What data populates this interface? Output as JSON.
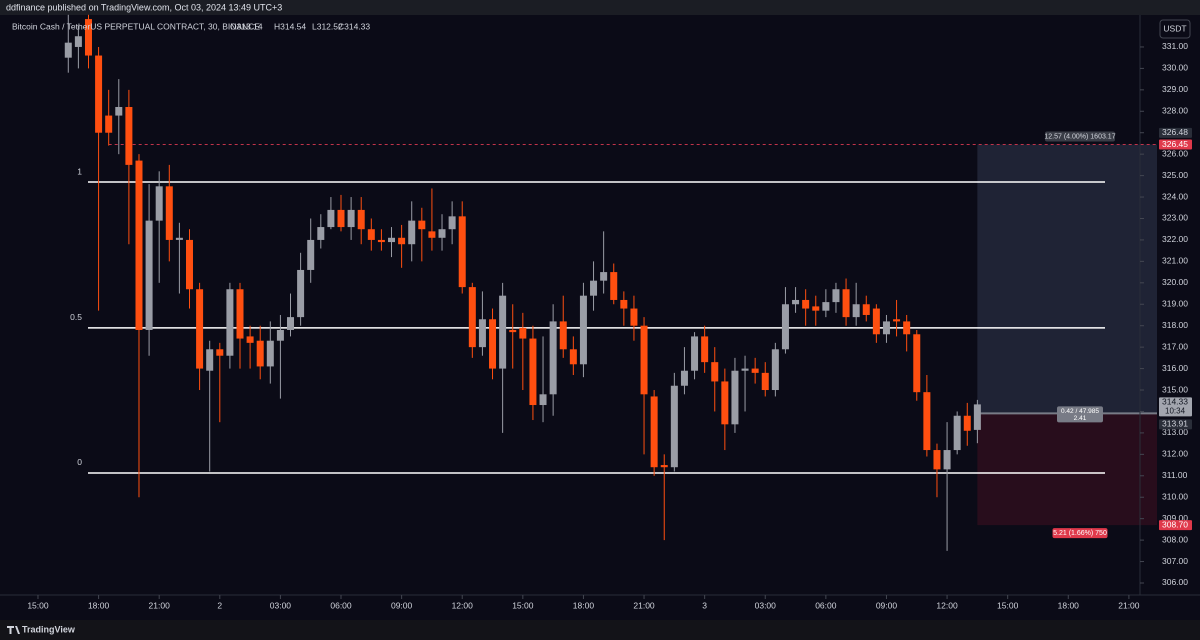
{
  "header": {
    "published": "ddfinance published on TradingView.com, Oct 03, 2024 13:49 UTC+3",
    "symbol": "Bitcoin Cash / TetherUS PERPETUAL CONTRACT, 30, BINANCE",
    "ohlc_labels": [
      "O313.14",
      "H314.54",
      "L312.52",
      "C314.33"
    ],
    "currency": "USDT",
    "logo": "TradingView"
  },
  "chart_data": {
    "type": "candlestick",
    "up_color": "#9a9da6",
    "down_color": "#ff4f10",
    "x": [
      16.5,
      17,
      17.5,
      18,
      18.5,
      19,
      19.5,
      20,
      20.5,
      21,
      21.5,
      22,
      22.5,
      23,
      23.5,
      24,
      24.5,
      25,
      25.5,
      26,
      26.5,
      27,
      27.5,
      28,
      28.5,
      29,
      29.5,
      30,
      30.5,
      31,
      31.5,
      32,
      32.5,
      33,
      33.5,
      34,
      34.5,
      35,
      35.5,
      36,
      36.5,
      37,
      37.5,
      38,
      38.5,
      39,
      39.5,
      40,
      40.5,
      41,
      41.5,
      42,
      42.5,
      43,
      43.5,
      44,
      44.5,
      45,
      45.5,
      46,
      46.5,
      47,
      47.5,
      48,
      48.5,
      49,
      49.5,
      50,
      50.5,
      51,
      51.5,
      52,
      52.5,
      53,
      53.5,
      54,
      54.5,
      55,
      55.5,
      56,
      56.5,
      57,
      57.5,
      58,
      58.5,
      59,
      59.5,
      60,
      60.5,
      61,
      61.5
    ],
    "open": [
      330.5,
      331,
      332.3,
      330.6,
      327.8,
      327.8,
      328.2,
      325.7,
      317.8,
      322.9,
      324.5,
      322,
      322,
      319.7,
      315.9,
      316.9,
      316.6,
      319.7,
      317.5,
      317.3,
      316.1,
      317.3,
      317.8,
      318.4,
      320.6,
      322,
      322.6,
      323.4,
      322.6,
      323.4,
      322.5,
      322,
      321.9,
      322.1,
      321.8,
      322.9,
      322.4,
      322.1,
      322.5,
      323.1,
      319.8,
      317,
      318.3,
      316,
      317.8,
      317.9,
      317.4,
      314.3,
      314.8,
      318.2,
      316.9,
      316.2,
      319.4,
      320.1,
      320.5,
      319.2,
      318.8,
      318,
      314.7,
      311.5,
      311.4,
      315.2,
      315.9,
      317.5,
      316.3,
      315.4,
      313.4,
      315.9,
      316,
      315.8,
      315,
      316.9,
      319,
      319.2,
      318.9,
      318.7,
      319.1,
      319.7,
      318.4,
      319,
      318.8,
      317.6,
      318.3,
      318.2,
      317.6,
      314.9,
      312.2,
      311.3,
      312.2,
      313.8,
      313.14
    ],
    "high": [
      332.5,
      332,
      332.5,
      331,
      329,
      329.5,
      329,
      326,
      324.6,
      325.2,
      325.5,
      322.8,
      322.5,
      320,
      317.3,
      317.2,
      320,
      320,
      318,
      318,
      318.2,
      318.5,
      319.5,
      321.4,
      323,
      323.2,
      324,
      324.1,
      324,
      324,
      323,
      322.5,
      322.6,
      322.7,
      323.8,
      323.5,
      324.4,
      323.2,
      323.8,
      323.8,
      320,
      319.6,
      318.8,
      320,
      319,
      318.6,
      318,
      317.5,
      319,
      319.4,
      317.5,
      320,
      321,
      322.4,
      320.9,
      319.6,
      319.4,
      318.4,
      315,
      312,
      315.8,
      317,
      317.7,
      318,
      317,
      316,
      316.5,
      316.6,
      316.5,
      316.3,
      317.2,
      319.8,
      319.8,
      319.7,
      319.4,
      319.7,
      320,
      320.2,
      320,
      319.4,
      319,
      318.5,
      319.2,
      318.5,
      317.8,
      315.7,
      312.5,
      313.5,
      314,
      314.4,
      314.54
    ],
    "low": [
      329.8,
      330,
      330,
      318.7,
      326.4,
      326,
      321.8,
      310,
      316.6,
      320,
      321,
      319.5,
      318.8,
      315,
      311.2,
      313.5,
      316,
      316,
      316,
      315.5,
      315.3,
      314.6,
      317.5,
      318,
      320,
      321.6,
      322.5,
      322.4,
      322,
      321.8,
      321.5,
      321.5,
      321.2,
      320.7,
      321,
      321,
      321.5,
      321.5,
      321.8,
      319.5,
      316.5,
      316.6,
      315.5,
      313,
      316,
      315,
      313.6,
      313.5,
      313.8,
      316.5,
      315.7,
      315.6,
      318.7,
      319.5,
      319,
      318,
      317.3,
      312,
      311,
      308,
      311.2,
      314.8,
      315.5,
      315.8,
      314,
      312.2,
      313,
      314,
      315.3,
      314.7,
      314.7,
      316.7,
      318.6,
      318,
      318,
      318.4,
      318.6,
      318,
      318,
      318.2,
      317.2,
      317.2,
      317.5,
      316.8,
      314.5,
      311.9,
      310,
      307.5,
      312,
      312.4,
      312.52
    ],
    "close": [
      331.2,
      331.5,
      330.6,
      327,
      327,
      328.2,
      325.5,
      317.8,
      322.9,
      324.5,
      322,
      322.1,
      319.7,
      316,
      316.9,
      316.6,
      319.7,
      317.4,
      317.2,
      316.1,
      317.3,
      317.8,
      318.4,
      320.6,
      322,
      322.6,
      323.4,
      322.6,
      323.4,
      322.5,
      322,
      321.9,
      322.1,
      321.8,
      322.9,
      322.5,
      322.1,
      322.5,
      323.1,
      319.8,
      317,
      318.3,
      316,
      319.4,
      317.7,
      317.4,
      314.3,
      314.8,
      318.2,
      316.9,
      316.2,
      319.4,
      320.1,
      320.5,
      319.2,
      318.8,
      318,
      314.8,
      311.4,
      311.4,
      315.2,
      315.9,
      317.5,
      316.3,
      315.4,
      313.4,
      315.9,
      316,
      315.8,
      315,
      316.9,
      319,
      319.2,
      318.8,
      318.7,
      319.1,
      319.7,
      318.4,
      319,
      318.5,
      317.6,
      318.2,
      318.2,
      317.6,
      314.9,
      312.2,
      311.3,
      312.2,
      313.8,
      313.1,
      314.33
    ],
    "xlim": [
      13.12,
      69.55
    ],
    "xticks": [
      {
        "value": 15,
        "label": "15:00"
      },
      {
        "value": 18,
        "label": "18:00"
      },
      {
        "value": 21,
        "label": "21:00"
      },
      {
        "value": 24,
        "label": "2"
      },
      {
        "value": 27,
        "label": "03:00"
      },
      {
        "value": 30,
        "label": "06:00"
      },
      {
        "value": 33,
        "label": "09:00"
      },
      {
        "value": 36,
        "label": "12:00"
      },
      {
        "value": 39,
        "label": "15:00"
      },
      {
        "value": 42,
        "label": "18:00"
      },
      {
        "value": 45,
        "label": "21:00"
      },
      {
        "value": 48,
        "label": "3"
      },
      {
        "value": 51,
        "label": "03:00"
      },
      {
        "value": 54,
        "label": "06:00"
      },
      {
        "value": 57,
        "label": "09:00"
      },
      {
        "value": 60,
        "label": "12:00"
      },
      {
        "value": 63,
        "label": "15:00"
      },
      {
        "value": 66,
        "label": "18:00"
      },
      {
        "value": 69,
        "label": "21:00"
      }
    ],
    "ylim": [
      305.44,
      333.19
    ],
    "yticks": [
      {
        "value": 306,
        "label": "306.00"
      },
      {
        "value": 307,
        "label": "307.00"
      },
      {
        "value": 308,
        "label": "308.00"
      },
      {
        "value": 309,
        "label": "309.00"
      },
      {
        "value": 310,
        "label": "310.00"
      },
      {
        "value": 311,
        "label": "311.00"
      },
      {
        "value": 312,
        "label": "312.00"
      },
      {
        "value": 313,
        "label": "313.00"
      },
      {
        "value": 314,
        "label": "314.00"
      },
      {
        "value": 315,
        "label": "315.00"
      },
      {
        "value": 316,
        "label": "316.00"
      },
      {
        "value": 317,
        "label": "317.00"
      },
      {
        "value": 318,
        "label": "318.00"
      },
      {
        "value": 319,
        "label": "319.00"
      },
      {
        "value": 320,
        "label": "320.00"
      },
      {
        "value": 321,
        "label": "321.00"
      },
      {
        "value": 322,
        "label": "322.00"
      },
      {
        "value": 323,
        "label": "323.00"
      },
      {
        "value": 324,
        "label": "324.00"
      },
      {
        "value": 325,
        "label": "325.00"
      },
      {
        "value": 326,
        "label": "326.00"
      },
      {
        "value": 327,
        "label": "327.00"
      },
      {
        "value": 328,
        "label": "328.00"
      },
      {
        "value": 329,
        "label": "329.00"
      },
      {
        "value": 330,
        "label": "330.00"
      },
      {
        "value": 331,
        "label": "331.00"
      }
    ],
    "grid": false,
    "fib": {
      "levels": [
        1,
        0.5,
        0
      ],
      "prices": [
        324.7,
        317.9,
        311.13
      ],
      "color": "#ffffff"
    },
    "position": {
      "entry": 313.91,
      "target": 326.45,
      "stop": {
        "value": 308.7,
        "label": "308.70"
      },
      "target_text": "12.57 (4.00%) 1603.17",
      "stop_text": "5.21 (1.66%) 750",
      "center_text": [
        "0.42 / 47.985",
        "2.41"
      ],
      "target_axis": 326.48
    },
    "last_price": 314.33,
    "countdown": "10:34"
  }
}
